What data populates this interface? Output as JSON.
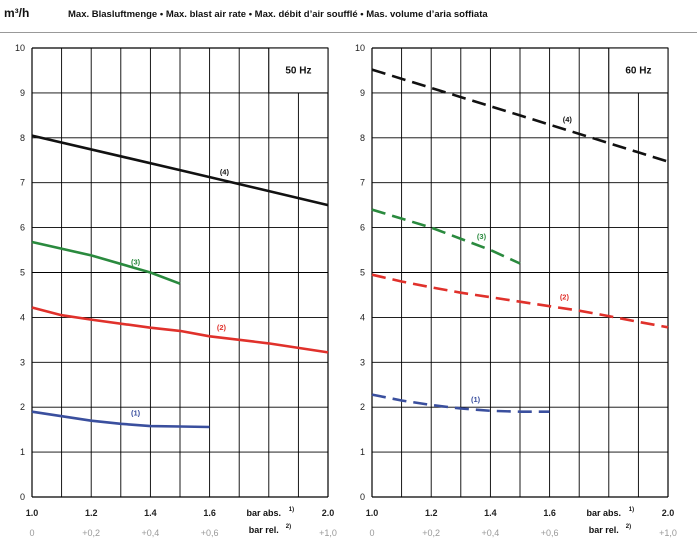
{
  "header": {
    "unit": "m³/h",
    "title": "Max. Blasluftmenge • Max. blast air rate • Max. débit d’air soufflé • Mas. volume d’aria soffiata"
  },
  "chart_data": [
    {
      "type": "line",
      "frequency_label": "50 Hz",
      "x_label_abs": "bar abs.",
      "x_label_abs_sup": "1)",
      "x_label_rel": "bar rel.",
      "x_label_rel_sup": "2)",
      "xlim": [
        1.0,
        2.0
      ],
      "ylim": [
        0,
        10
      ],
      "grid": true,
      "x_ticks_abs": [
        "1.0",
        "1.2",
        "1.4",
        "1.6",
        "1.8",
        "2.0"
      ],
      "x_ticks_rel": [
        "0",
        "+0,2",
        "+0,4",
        "+0,6",
        "+0,8",
        "+1,0"
      ],
      "y_ticks": [
        "0",
        "1",
        "2",
        "3",
        "4",
        "5",
        "6",
        "7",
        "8",
        "9",
        "10"
      ],
      "series": [
        {
          "name": "(1)",
          "color": "#3a4f9e",
          "dashed": false,
          "label_at": [
            1.35,
            1.82
          ],
          "x": [
            1.0,
            1.1,
            1.2,
            1.3,
            1.4,
            1.5,
            1.6
          ],
          "y": [
            1.9,
            1.8,
            1.7,
            1.63,
            1.58,
            1.57,
            1.56
          ]
        },
        {
          "name": "(2)",
          "color": "#e0312b",
          "dashed": false,
          "label_at": [
            1.64,
            3.72
          ],
          "x": [
            1.0,
            1.1,
            1.2,
            1.4,
            1.5,
            1.6,
            1.8,
            2.0
          ],
          "y": [
            4.22,
            4.05,
            3.95,
            3.77,
            3.7,
            3.58,
            3.42,
            3.22
          ]
        },
        {
          "name": "(3)",
          "color": "#2a8a3e",
          "dashed": false,
          "label_at": [
            1.35,
            5.18
          ],
          "x": [
            1.0,
            1.2,
            1.4,
            1.5
          ],
          "y": [
            5.68,
            5.38,
            5.0,
            4.75
          ]
        },
        {
          "name": "(4)",
          "color": "#111111",
          "dashed": false,
          "label_at": [
            1.65,
            7.18
          ],
          "x": [
            1.0,
            1.5,
            2.0
          ],
          "y": [
            8.05,
            7.28,
            6.5
          ]
        }
      ]
    },
    {
      "type": "line",
      "frequency_label": "60 Hz",
      "x_label_abs": "bar abs.",
      "x_label_abs_sup": "1)",
      "x_label_rel": "bar rel.",
      "x_label_rel_sup": "2)",
      "xlim": [
        1.0,
        2.0
      ],
      "ylim": [
        0,
        10
      ],
      "grid": true,
      "x_ticks_abs": [
        "1.0",
        "1.2",
        "1.4",
        "1.6",
        "1.8",
        "2.0"
      ],
      "x_ticks_rel": [
        "0",
        "+0,2",
        "+0,4",
        "+0,6",
        "+0,8",
        "+1,0"
      ],
      "y_ticks": [
        "0",
        "1",
        "2",
        "3",
        "4",
        "5",
        "6",
        "7",
        "8",
        "9",
        "10"
      ],
      "series": [
        {
          "name": "(1)",
          "color": "#3a4f9e",
          "dashed": true,
          "label_at": [
            1.35,
            2.12
          ],
          "x": [
            1.0,
            1.1,
            1.2,
            1.3,
            1.4,
            1.5,
            1.6
          ],
          "y": [
            2.28,
            2.15,
            2.05,
            1.97,
            1.92,
            1.9,
            1.9
          ]
        },
        {
          "name": "(2)",
          "color": "#e0312b",
          "dashed": true,
          "label_at": [
            1.65,
            4.4
          ],
          "x": [
            1.0,
            1.1,
            1.2,
            1.3,
            1.4,
            1.5,
            1.6,
            1.7,
            1.8,
            1.9,
            2.0
          ],
          "y": [
            4.95,
            4.8,
            4.67,
            4.55,
            4.45,
            4.35,
            4.25,
            4.15,
            4.03,
            3.9,
            3.78
          ]
        },
        {
          "name": "(3)",
          "color": "#2a8a3e",
          "dashed": true,
          "label_at": [
            1.37,
            5.75
          ],
          "x": [
            1.0,
            1.2,
            1.4,
            1.5
          ],
          "y": [
            6.4,
            6.0,
            5.5,
            5.2
          ]
        },
        {
          "name": "(4)",
          "color": "#111111",
          "dashed": true,
          "label_at": [
            1.66,
            8.35
          ],
          "x": [
            1.0,
            1.5,
            2.0
          ],
          "y": [
            9.52,
            8.5,
            7.47
          ]
        }
      ]
    }
  ]
}
